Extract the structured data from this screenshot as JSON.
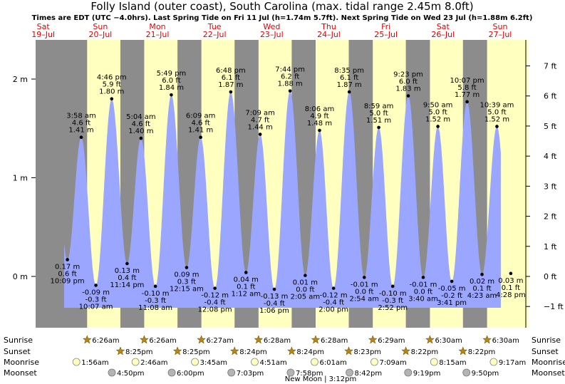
{
  "title": "Folly Island (outer coast), South Carolina (max. tidal range 2.45m 8.0ft)",
  "subtitle": "Times are EDT (UTC −4.0hrs). Last Spring Tide on Fri 11 Jul (h=1.74m 5.7ft). Next Spring Tide on Wed 23 Jul (h=1.88m 6.2ft)",
  "colors": {
    "night": "#8c8c8c",
    "day": "#ffffc0",
    "water": "#9aa6ff",
    "day_label": "#e00000",
    "sun_star": "#b8860b",
    "moonrise": "#ffffc0",
    "moonset": "#b4b4b4"
  },
  "chart_data": {
    "type": "area",
    "title": "Folly Island (outer coast), South Carolina (max. tidal range 2.45m 8.0ft)",
    "y_left_unit": "m",
    "y_right_unit": "ft",
    "y_left_ticks": [
      "0 m",
      "1 m",
      "2 m"
    ],
    "y_right_ticks": [
      "−1 ft",
      "0 ft",
      "1 ft",
      "2 ft",
      "3 ft",
      "4 ft",
      "5 ft",
      "6 ft",
      "7 ft"
    ],
    "grid": false,
    "days": [
      {
        "weekday": "Sat",
        "date": "19–Jul"
      },
      {
        "weekday": "Sun",
        "date": "20–Jul"
      },
      {
        "weekday": "Mon",
        "date": "21–Jul"
      },
      {
        "weekday": "Tue",
        "date": "22–Jul"
      },
      {
        "weekday": "Wed",
        "date": "23–Jul"
      },
      {
        "weekday": "Thu",
        "date": "24–Jul"
      },
      {
        "weekday": "Fri",
        "date": "25–Jul"
      },
      {
        "weekday": "Sat",
        "date": "26–Jul"
      },
      {
        "weekday": "Sun",
        "date": "27–Jul"
      }
    ],
    "tides": [
      {
        "x": "2025-07-19 22:09",
        "time": "10:09 pm",
        "m": 0.17,
        "ft": 0.6,
        "type": "low"
      },
      {
        "x": "2025-07-20 03:58",
        "time": "3:58 am",
        "m": 1.41,
        "ft": 4.6,
        "type": "high"
      },
      {
        "x": "2025-07-20 10:07",
        "time": "10:07 am",
        "m": -0.09,
        "ft": -0.3,
        "type": "low"
      },
      {
        "x": "2025-07-20 16:46",
        "time": "4:46 pm",
        "m": 1.8,
        "ft": 5.9,
        "type": "high"
      },
      {
        "x": "2025-07-20 23:14",
        "time": "11:14 pm",
        "m": 0.13,
        "ft": 0.4,
        "type": "low"
      },
      {
        "x": "2025-07-21 05:04",
        "time": "5:04 am",
        "m": 1.4,
        "ft": 4.6,
        "type": "high"
      },
      {
        "x": "2025-07-21 11:08",
        "time": "11:08 am",
        "m": -0.1,
        "ft": -0.3,
        "type": "low"
      },
      {
        "x": "2025-07-21 17:49",
        "time": "5:49 pm",
        "m": 1.84,
        "ft": 6.0,
        "type": "high"
      },
      {
        "x": "2025-07-22 00:15",
        "time": "12:15 am",
        "m": 0.09,
        "ft": 0.3,
        "type": "low"
      },
      {
        "x": "2025-07-22 06:09",
        "time": "6:09 am",
        "m": 1.41,
        "ft": 4.6,
        "type": "high"
      },
      {
        "x": "2025-07-22 12:08",
        "time": "12:08 pm",
        "m": -0.12,
        "ft": -0.4,
        "type": "low"
      },
      {
        "x": "2025-07-22 18:48",
        "time": "6:48 pm",
        "m": 1.87,
        "ft": 6.1,
        "type": "high"
      },
      {
        "x": "2025-07-23 01:12",
        "time": "1:12 am",
        "m": 0.04,
        "ft": 0.1,
        "type": "low"
      },
      {
        "x": "2025-07-23 07:09",
        "time": "7:09 am",
        "m": 1.44,
        "ft": 4.7,
        "type": "high"
      },
      {
        "x": "2025-07-23 13:06",
        "time": "1:06 pm",
        "m": -0.13,
        "ft": -0.4,
        "type": "low"
      },
      {
        "x": "2025-07-23 19:44",
        "time": "7:44 pm",
        "m": 1.88,
        "ft": 6.2,
        "type": "high"
      },
      {
        "x": "2025-07-24 02:05",
        "time": "2:05 am",
        "m": 0.01,
        "ft": 0.0,
        "type": "low"
      },
      {
        "x": "2025-07-24 08:06",
        "time": "8:06 am",
        "m": 1.48,
        "ft": 4.9,
        "type": "high"
      },
      {
        "x": "2025-07-24 14:00",
        "time": "2:00 pm",
        "m": -0.12,
        "ft": -0.4,
        "type": "low"
      },
      {
        "x": "2025-07-24 20:35",
        "time": "8:35 pm",
        "m": 1.87,
        "ft": 6.1,
        "type": "high"
      },
      {
        "x": "2025-07-25 02:54",
        "time": "2:54 am",
        "m": -0.01,
        "ft": -0.0,
        "type": "low"
      },
      {
        "x": "2025-07-25 08:59",
        "time": "8:59 am",
        "m": 1.51,
        "ft": 5.0,
        "type": "high"
      },
      {
        "x": "2025-07-25 14:52",
        "time": "2:52 pm",
        "m": -0.1,
        "ft": -0.3,
        "type": "low"
      },
      {
        "x": "2025-07-25 21:23",
        "time": "9:23 pm",
        "m": 1.83,
        "ft": 6.0,
        "type": "high"
      },
      {
        "x": "2025-07-26 03:40",
        "time": "3:40 am",
        "m": -0.01,
        "ft": -0.0,
        "type": "low"
      },
      {
        "x": "2025-07-26 09:50",
        "time": "9:50 am",
        "m": 1.52,
        "ft": 5.0,
        "type": "high"
      },
      {
        "x": "2025-07-26 15:41",
        "time": "3:41 pm",
        "m": -0.05,
        "ft": -0.2,
        "type": "low"
      },
      {
        "x": "2025-07-26 22:07",
        "time": "10:07 pm",
        "m": 1.77,
        "ft": 5.8,
        "type": "high"
      },
      {
        "x": "2025-07-27 04:23",
        "time": "4:23 am",
        "m": 0.02,
        "ft": 0.1,
        "type": "low"
      },
      {
        "x": "2025-07-27 10:39",
        "time": "10:39 am",
        "m": 1.52,
        "ft": 5.0,
        "type": "high"
      },
      {
        "x": "2025-07-27 16:28",
        "time": "4:28 pm",
        "m": 0.03,
        "ft": 0.1,
        "type": "low"
      }
    ],
    "sun": [
      {
        "date": "2025-07-20",
        "sunrise": "6:26am",
        "sunset": "8:25pm"
      },
      {
        "date": "2025-07-21",
        "sunrise": "6:26am",
        "sunset": "8:25pm"
      },
      {
        "date": "2025-07-22",
        "sunrise": "6:27am",
        "sunset": "8:24pm"
      },
      {
        "date": "2025-07-23",
        "sunrise": "6:28am",
        "sunset": "8:24pm"
      },
      {
        "date": "2025-07-24",
        "sunrise": "6:28am",
        "sunset": "8:23pm"
      },
      {
        "date": "2025-07-25",
        "sunrise": "6:29am",
        "sunset": "8:22pm"
      },
      {
        "date": "2025-07-26",
        "sunrise": "6:30am",
        "sunset": "8:22pm"
      },
      {
        "date": "2025-07-27",
        "sunrise": "6:30am",
        "sunset": ""
      }
    ],
    "moonrise": [
      {
        "x": "2025-07-20 01:56",
        "label": "1:56am"
      },
      {
        "x": "2025-07-21 02:46",
        "label": "2:46am"
      },
      {
        "x": "2025-07-22 03:45",
        "label": "3:45am"
      },
      {
        "x": "2025-07-23 04:51",
        "label": "4:51am"
      },
      {
        "x": "2025-07-24 06:01",
        "label": "6:01am"
      },
      {
        "x": "2025-07-25 07:09",
        "label": "7:09am"
      },
      {
        "x": "2025-07-26 08:15",
        "label": "8:15am"
      },
      {
        "x": "2025-07-27 09:17",
        "label": "9:17am"
      }
    ],
    "moonset": [
      {
        "x": "2025-07-20 16:50",
        "label": "4:50pm"
      },
      {
        "x": "2025-07-21 18:00",
        "label": "6:00pm"
      },
      {
        "x": "2025-07-22 19:03",
        "label": "7:03pm"
      },
      {
        "x": "2025-07-23 19:58",
        "label": "7:58pm"
      },
      {
        "x": "2025-07-24 20:42",
        "label": "8:42pm"
      },
      {
        "x": "2025-07-25 21:19",
        "label": "9:19pm"
      },
      {
        "x": "2025-07-26 21:50",
        "label": "9:50pm"
      }
    ],
    "moon_phase": {
      "label": "New Moon",
      "time": "3:12pm"
    },
    "row_labels": [
      "Sunrise",
      "Sunset",
      "Moonrise",
      "Moonset"
    ]
  }
}
